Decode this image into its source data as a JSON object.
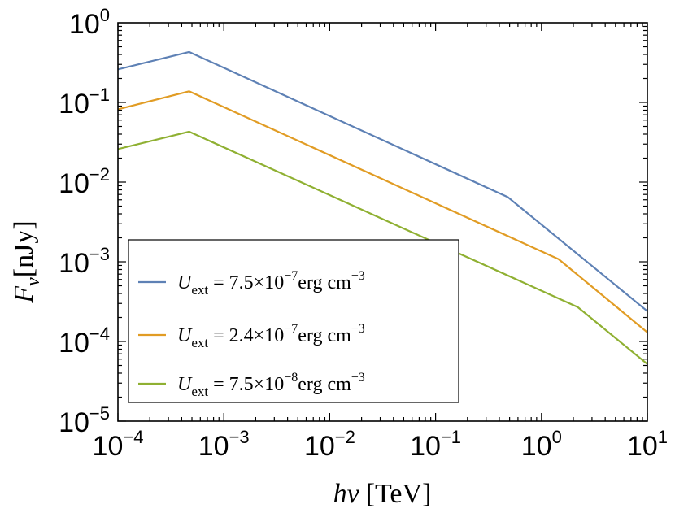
{
  "chart_data": {
    "type": "line",
    "x_scale": "log",
    "y_scale": "log",
    "xlim": [
      0.0001,
      10
    ],
    "ylim": [
      1e-05,
      1
    ],
    "grid": false,
    "legend_position": "bottom-left",
    "xlabel": {
      "var": "hν",
      "unit": "[TeV]"
    },
    "ylabel": {
      "var": "F",
      "sub": "ν",
      "unit": "[nJy]"
    },
    "x_ticks": [
      {
        "value": 0.0001,
        "base": "10",
        "exp": "−4"
      },
      {
        "value": 0.001,
        "base": "10",
        "exp": "−3"
      },
      {
        "value": 0.01,
        "base": "10",
        "exp": "−2"
      },
      {
        "value": 0.1,
        "base": "10",
        "exp": "−1"
      },
      {
        "value": 1,
        "base": "10",
        "exp": "0"
      },
      {
        "value": 10,
        "base": "10",
        "exp": "1"
      }
    ],
    "y_ticks": [
      {
        "value": 1e-05,
        "base": "10",
        "exp": "−5"
      },
      {
        "value": 0.0001,
        "base": "10",
        "exp": "−4"
      },
      {
        "value": 0.001,
        "base": "10",
        "exp": "−3"
      },
      {
        "value": 0.01,
        "base": "10",
        "exp": "−2"
      },
      {
        "value": 0.1,
        "base": "10",
        "exp": "−1"
      },
      {
        "value": 1,
        "base": "10",
        "exp": "0"
      }
    ],
    "series": [
      {
        "legend": {
          "var": "U",
          "sub": "ext",
          "text": " = 7.5×10",
          "exp": "−7",
          "unit": "erg cm",
          "unit_exp": "−3"
        },
        "color": "#5e81b5",
        "points": [
          [
            0.0001,
            0.26
          ],
          [
            0.00047,
            0.43
          ],
          [
            0.48,
            0.0065
          ],
          [
            10,
            0.00024
          ]
        ]
      },
      {
        "legend": {
          "var": "U",
          "sub": "ext",
          "text": " = 2.4×10",
          "exp": "−7",
          "unit": "erg cm",
          "unit_exp": "−3"
        },
        "color": "#e19c24",
        "points": [
          [
            0.0001,
            0.082
          ],
          [
            0.00047,
            0.138
          ],
          [
            1.45,
            0.00108
          ],
          [
            10,
            0.00013
          ]
        ]
      },
      {
        "legend": {
          "var": "U",
          "sub": "ext",
          "text": " = 7.5×10",
          "exp": "−8",
          "unit": "erg cm",
          "unit_exp": "−3"
        },
        "color": "#8fb032",
        "points": [
          [
            0.0001,
            0.026
          ],
          [
            0.00047,
            0.043
          ],
          [
            2.2,
            0.00027
          ],
          [
            10,
            5.2e-05
          ]
        ]
      }
    ]
  }
}
